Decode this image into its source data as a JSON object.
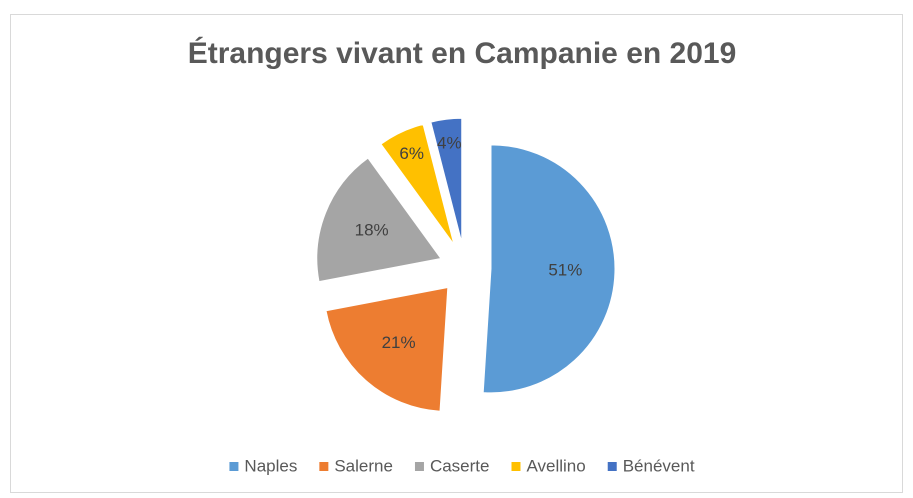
{
  "chart_data": {
    "type": "pie",
    "title": "Étrangers vivant en Campanie en 2019",
    "categories": [
      "Naples",
      "Salerne",
      "Caserte",
      "Avellino",
      "Bénévent"
    ],
    "values": [
      51,
      21,
      18,
      6,
      4
    ],
    "value_labels": [
      "51%",
      "21%",
      "18%",
      "6%",
      "4%"
    ],
    "colors": [
      "#5b9bd5",
      "#ed7d31",
      "#a5a5a5",
      "#ffc000",
      "#4472c4"
    ],
    "legend": "bottom"
  }
}
